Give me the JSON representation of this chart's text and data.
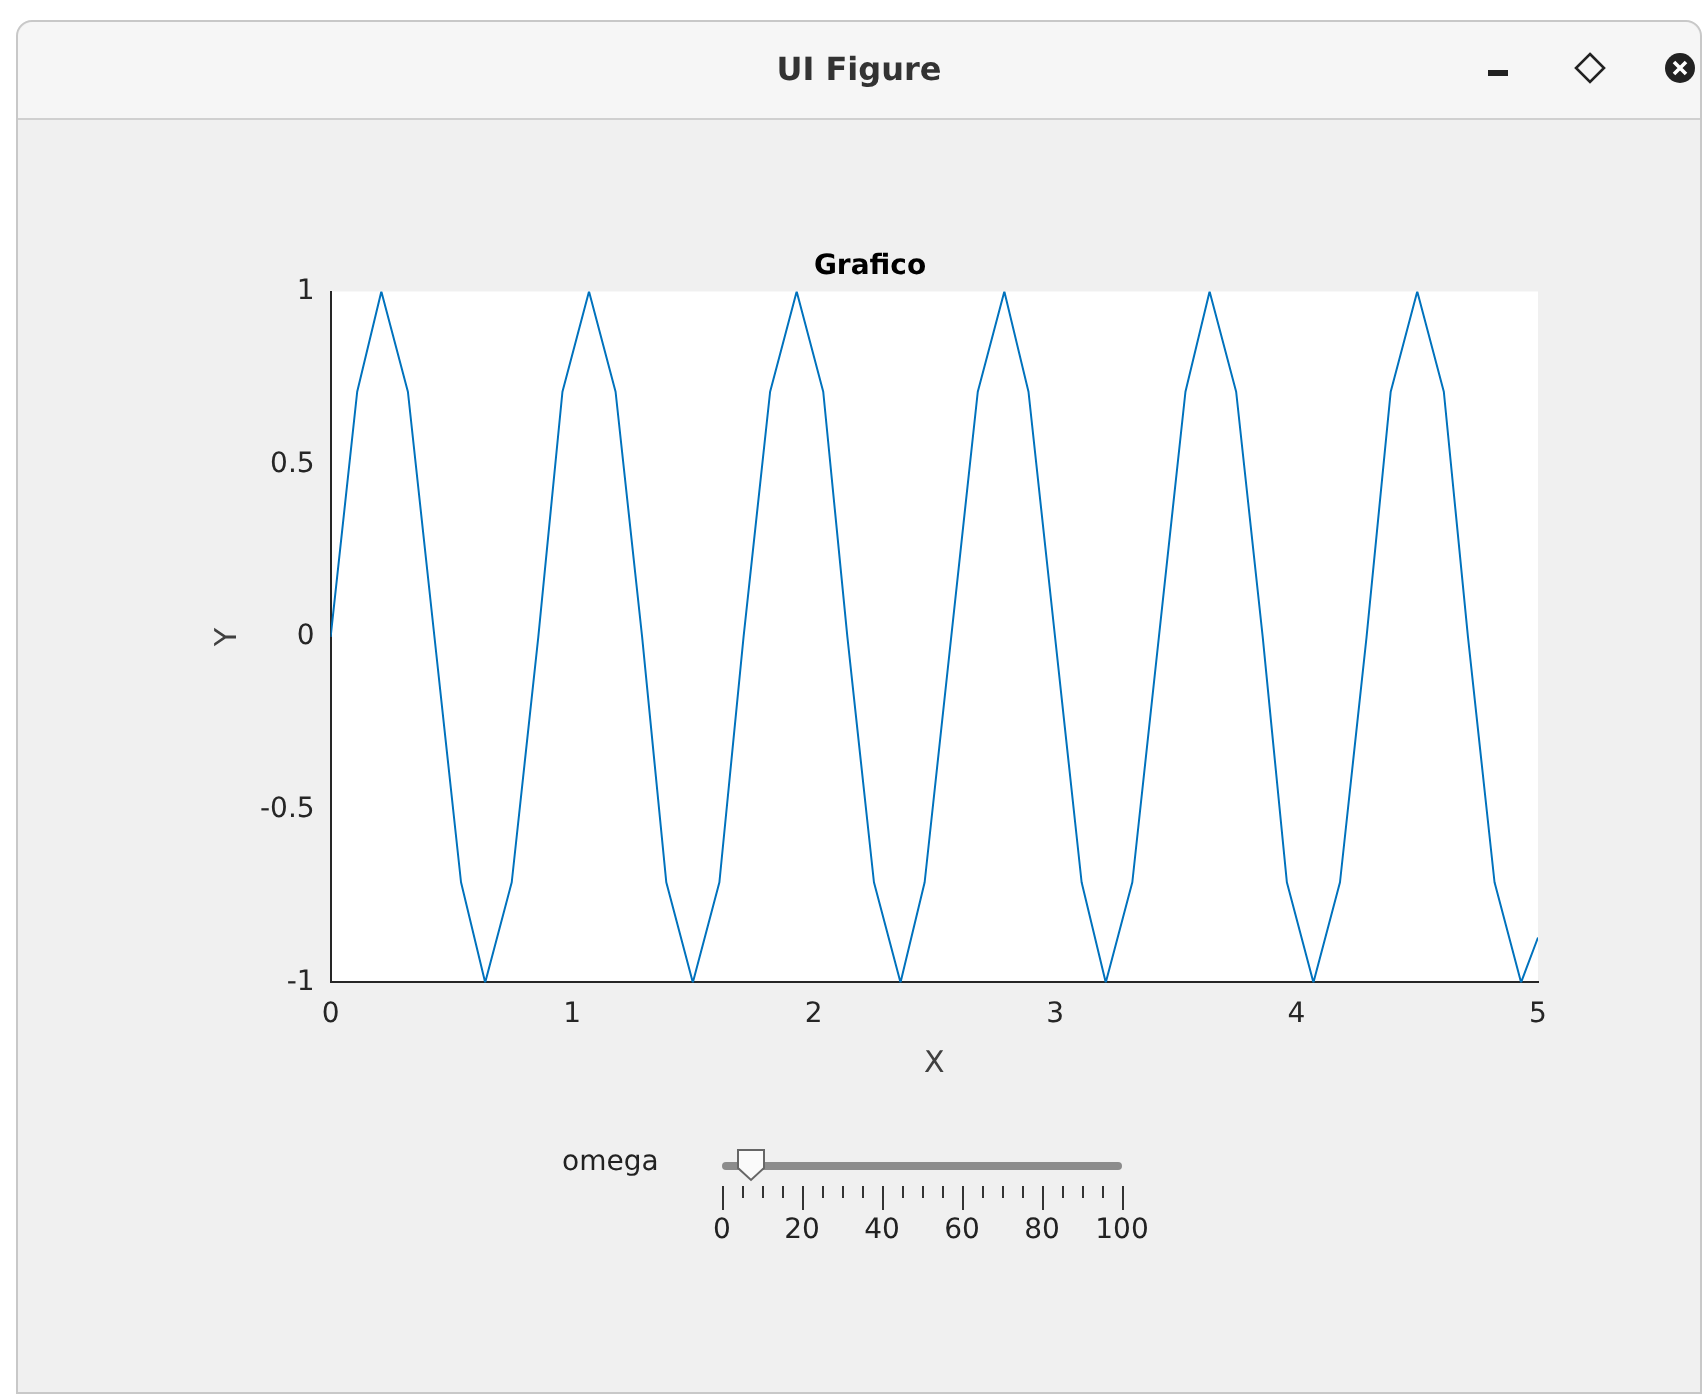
{
  "chart_data": {
    "type": "line",
    "title": "Grafico",
    "xlabel": "X",
    "ylabel": "Y",
    "annotations": [
      "UI Figure",
      "omega",
      "0",
      "20",
      "40",
      "60",
      "80",
      "100"
    ],
    "x": [
      0,
      0.11,
      0.21,
      0.32,
      0.43,
      0.54,
      0.64,
      0.75,
      0.86,
      0.96,
      1.07,
      1.18,
      1.29,
      1.39,
      1.5,
      1.61,
      1.71,
      1.82,
      1.93,
      2.04,
      2.14,
      2.25,
      2.36,
      2.46,
      2.57,
      2.68,
      2.79,
      2.89,
      3.0,
      3.11,
      3.21,
      3.32,
      3.43,
      3.54,
      3.64,
      3.75,
      3.86,
      3.96,
      4.07,
      4.18,
      4.29,
      4.39,
      4.5,
      4.61,
      4.71,
      4.82,
      4.93,
      5
    ],
    "series": [
      {
        "color": "#0072bd",
        "values": [
          0,
          0.71,
          1,
          0.71,
          0,
          -0.71,
          -1,
          -0.71,
          0,
          0.71,
          1,
          0.71,
          0,
          -0.71,
          -1,
          -0.71,
          0,
          0.71,
          1,
          0.71,
          0,
          -0.71,
          -1,
          -0.71,
          0,
          0.71,
          1,
          0.71,
          0,
          -0.71,
          -1,
          -0.71,
          0,
          0.71,
          1,
          0.71,
          0,
          -0.71,
          -1,
          -0.71,
          0,
          0.71,
          1,
          0.71,
          0,
          -0.71,
          -1,
          -0.87
        ]
      }
    ],
    "xlim": [
      0,
      5
    ],
    "xticks": [
      0,
      1,
      2,
      3,
      4,
      5
    ],
    "ylim": [
      -1,
      1
    ],
    "yticks": [
      -1,
      -0.5,
      0,
      0.5,
      1
    ],
    "grid": false,
    "legend": false,
    "marker": "none",
    "line_style": "solid"
  }
}
